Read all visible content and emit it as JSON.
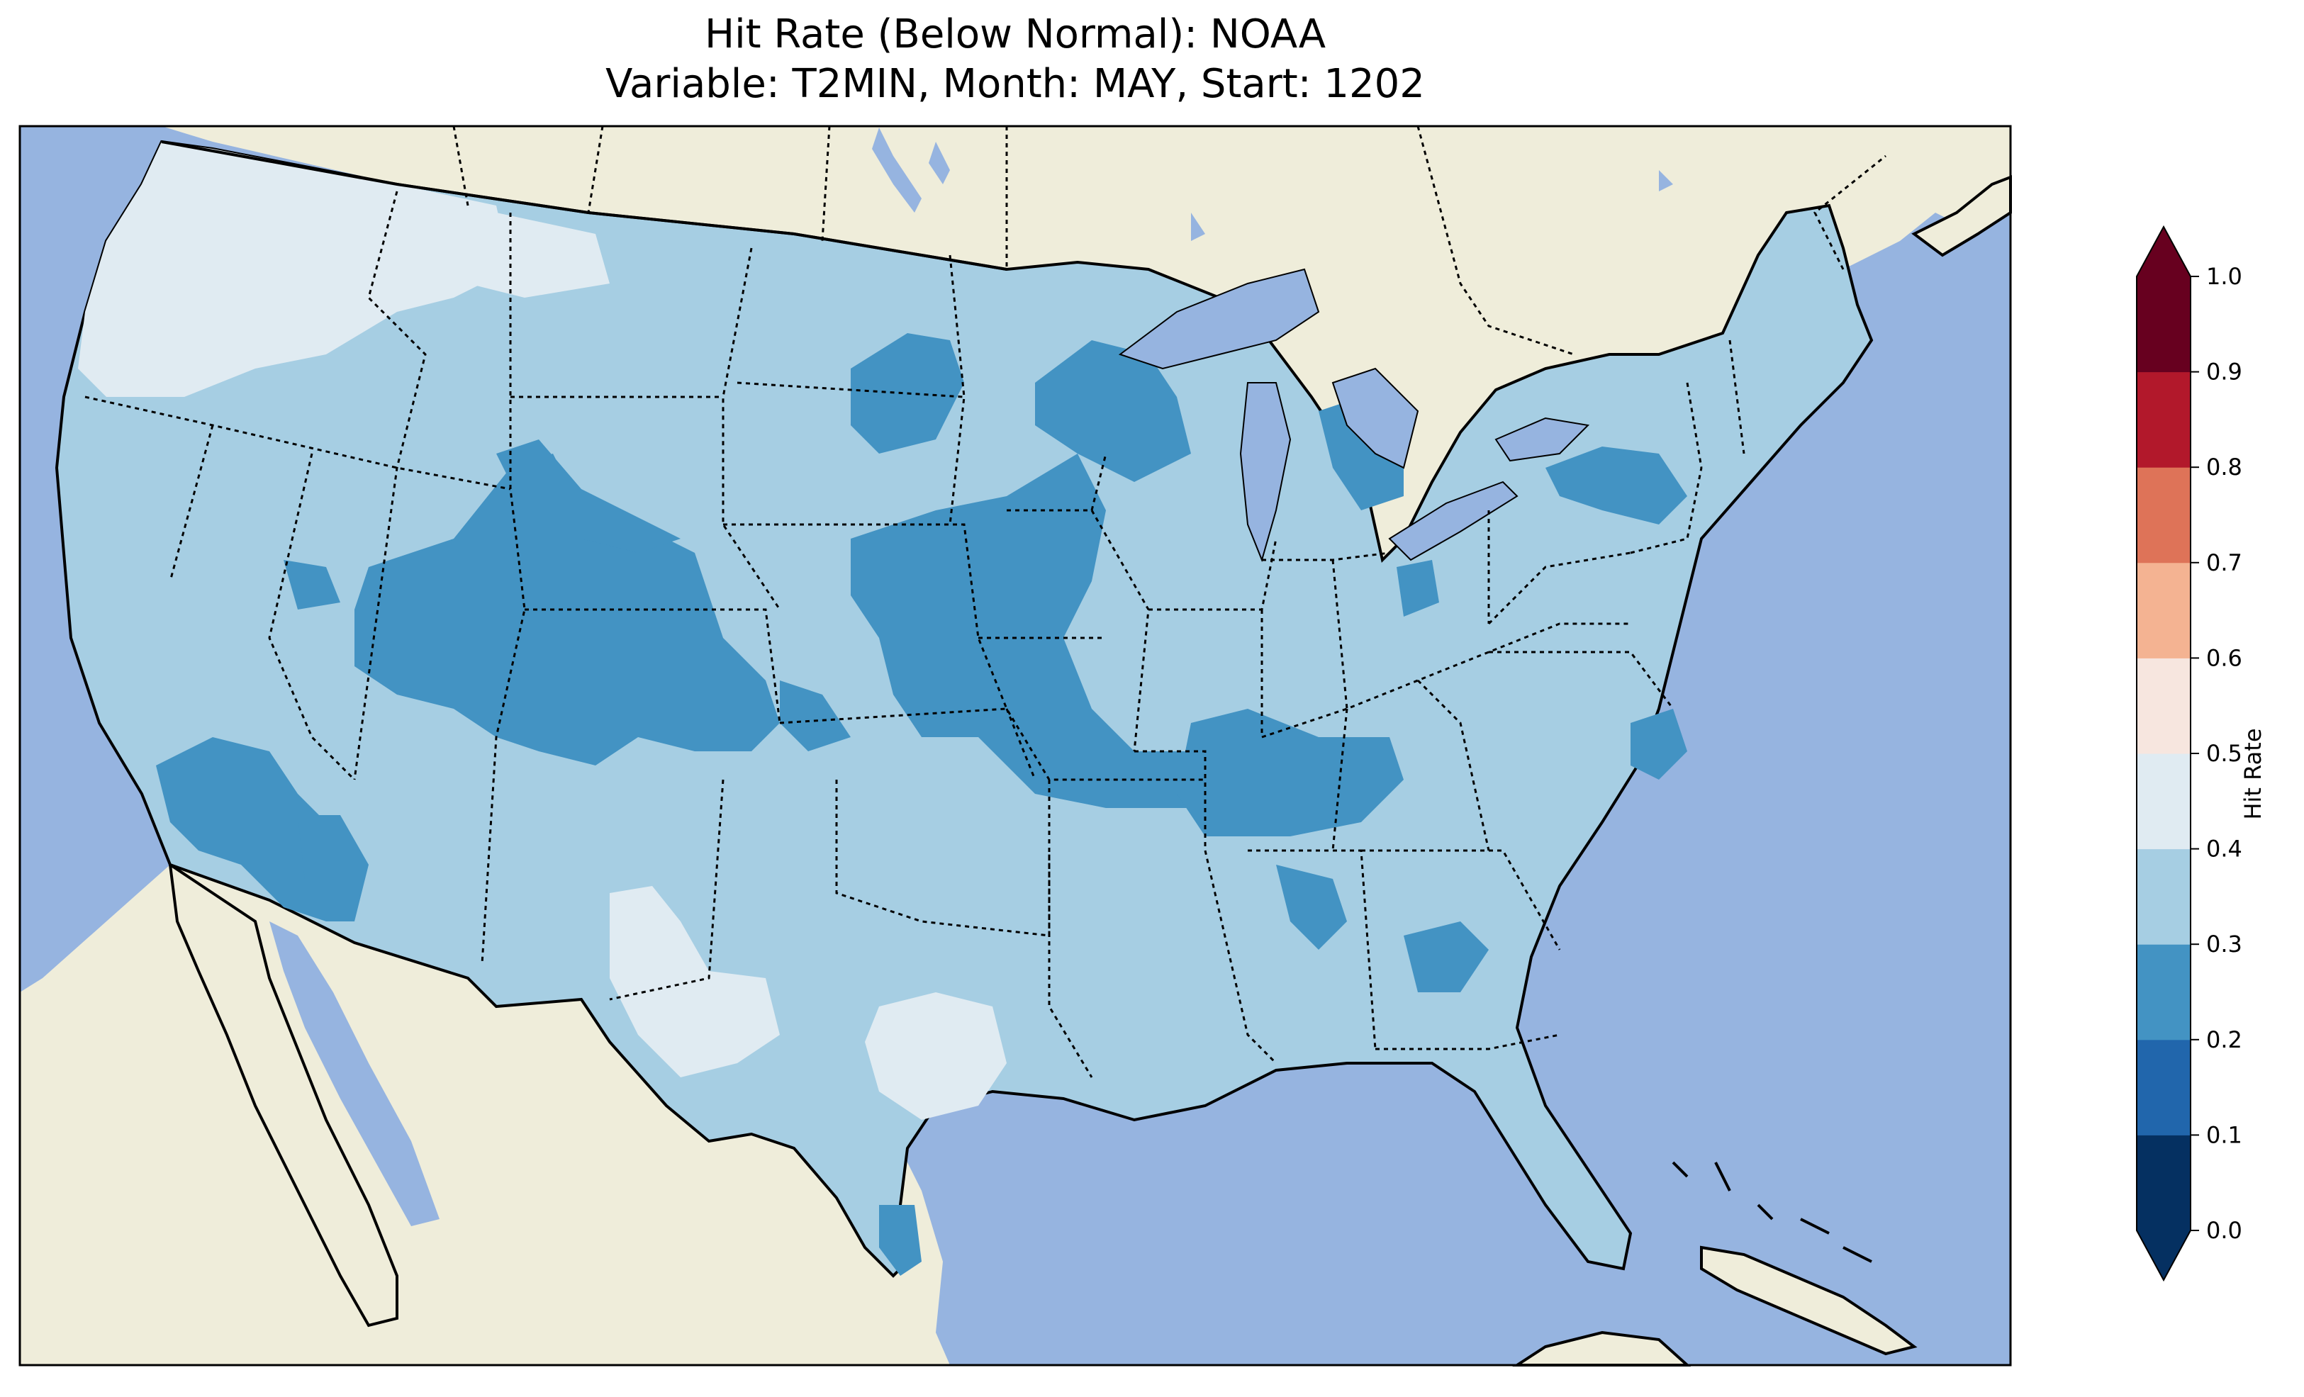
{
  "title_line1": "Hit Rate (Below Normal): NOAA",
  "title_line2": "Variable: T2MIN, Month: MAY, Start: 1202",
  "colorbar": {
    "label": "Hit Rate",
    "ticks": [
      "0.0",
      "0.1",
      "0.2",
      "0.3",
      "0.4",
      "0.5",
      "0.6",
      "0.7",
      "0.8",
      "0.9",
      "1.0"
    ],
    "bins": [
      {
        "range": [
          0.0,
          0.1
        ],
        "color": "#053061"
      },
      {
        "range": [
          0.1,
          0.2
        ],
        "color": "#2166ac"
      },
      {
        "range": [
          0.2,
          0.3
        ],
        "color": "#4393c3"
      },
      {
        "range": [
          0.3,
          0.4
        ],
        "color": "#a6cee3"
      },
      {
        "range": [
          0.4,
          0.5
        ],
        "color": "#e0ebf2"
      },
      {
        "range": [
          0.5,
          0.6
        ],
        "color": "#f7e6df"
      },
      {
        "range": [
          0.6,
          0.7
        ],
        "color": "#f4b392"
      },
      {
        "range": [
          0.7,
          0.8
        ],
        "color": "#de7358"
      },
      {
        "range": [
          0.8,
          0.9
        ],
        "color": "#b2182b"
      },
      {
        "range": [
          0.9,
          1.0
        ],
        "color": "#67001f"
      }
    ],
    "under_color": "#053061",
    "over_color": "#67001f"
  },
  "colors": {
    "ocean": "#96b4e0",
    "land": "#efedda",
    "coastline": "#000000",
    "borders": "#000000"
  },
  "map": {
    "region": "Contiguous United States",
    "projection": "lat-lon",
    "dominant_class": "0.3-0.4",
    "regions_0.2_0.3": [
      "Central Rockies (Utah/Wyoming/Colorado)",
      "Southern California",
      "Nebraska/Iowa/Missouri",
      "Tennessee",
      "Minnesota",
      "Michigan",
      "New York"
    ],
    "regions_0.4_0.5": [
      "Pacific Northwest",
      "West Texas",
      "South Texas"
    ]
  }
}
